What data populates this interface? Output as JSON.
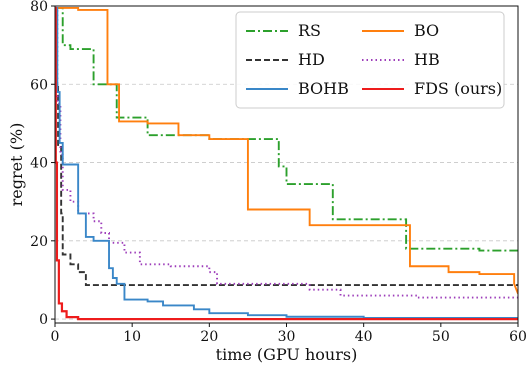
{
  "chart_data": {
    "type": "line",
    "title": "",
    "xlabel": "time (GPU hours)",
    "ylabel": "regret (%)",
    "xlim": [
      0,
      60
    ],
    "ylim": [
      -1,
      80
    ],
    "xticks": [
      0,
      10,
      20,
      30,
      40,
      50,
      60
    ],
    "yticks": [
      0,
      20,
      40,
      60,
      80
    ],
    "grid": "horizontal dashed",
    "legend_position": "top-right",
    "legend_columns": 2,
    "series": [
      {
        "name": "RS",
        "color": "#2ca02c",
        "linestyle": "dashdot",
        "step": true,
        "points": [
          [
            0,
            79.5
          ],
          [
            1,
            79.5
          ],
          [
            1,
            70
          ],
          [
            2,
            70
          ],
          [
            2,
            69
          ],
          [
            5,
            69
          ],
          [
            5,
            60
          ],
          [
            8,
            60
          ],
          [
            8,
            51.5
          ],
          [
            12,
            51.5
          ],
          [
            12,
            47
          ],
          [
            20,
            47
          ],
          [
            20,
            46
          ],
          [
            29,
            46
          ],
          [
            29,
            39
          ],
          [
            30,
            39
          ],
          [
            30,
            34.5
          ],
          [
            36,
            34.5
          ],
          [
            36,
            25.5
          ],
          [
            45.5,
            25.5
          ],
          [
            45.5,
            18
          ],
          [
            55,
            18
          ],
          [
            55,
            17.5
          ],
          [
            60,
            17.5
          ]
        ]
      },
      {
        "name": "BO",
        "color": "#ff7f0e",
        "linestyle": "solid",
        "step": true,
        "points": [
          [
            0,
            79.5
          ],
          [
            3,
            79.5
          ],
          [
            3,
            79
          ],
          [
            6.8,
            79
          ],
          [
            6.8,
            60
          ],
          [
            8.3,
            60
          ],
          [
            8.3,
            50.5
          ],
          [
            12,
            50.5
          ],
          [
            12,
            50
          ],
          [
            16,
            50
          ],
          [
            16,
            47
          ],
          [
            20,
            47
          ],
          [
            20,
            46
          ],
          [
            25,
            46
          ],
          [
            25,
            28
          ],
          [
            33,
            28
          ],
          [
            33,
            24
          ],
          [
            46,
            24
          ],
          [
            46,
            13.5
          ],
          [
            51,
            13.5
          ],
          [
            51,
            12
          ],
          [
            55,
            12
          ],
          [
            55,
            11.5
          ],
          [
            59.5,
            11.5
          ],
          [
            59.5,
            9
          ],
          [
            60,
            6.5
          ]
        ]
      },
      {
        "name": "HD",
        "color": "#333333",
        "linestyle": "dashed",
        "step": true,
        "points": [
          [
            0,
            79.5
          ],
          [
            0.2,
            79.5
          ],
          [
            0.2,
            60
          ],
          [
            0.4,
            60
          ],
          [
            0.4,
            44
          ],
          [
            0.8,
            44
          ],
          [
            0.8,
            27
          ],
          [
            1,
            27
          ],
          [
            1,
            16.5
          ],
          [
            2,
            16.5
          ],
          [
            2,
            14
          ],
          [
            3,
            14
          ],
          [
            3,
            12
          ],
          [
            4,
            12
          ],
          [
            4,
            8.7
          ],
          [
            60,
            8.7
          ]
        ]
      },
      {
        "name": "HB",
        "color": "#9d3dba",
        "linestyle": "dotted",
        "step": true,
        "points": [
          [
            0,
            79.5
          ],
          [
            0.3,
            79.5
          ],
          [
            0.3,
            55
          ],
          [
            0.7,
            55
          ],
          [
            0.7,
            42
          ],
          [
            1,
            42
          ],
          [
            1,
            33
          ],
          [
            2,
            33
          ],
          [
            2,
            30
          ],
          [
            3,
            30
          ],
          [
            3,
            27
          ],
          [
            5,
            27
          ],
          [
            5,
            25
          ],
          [
            6,
            25
          ],
          [
            6,
            22
          ],
          [
            7,
            22
          ],
          [
            7,
            19.5
          ],
          [
            9,
            19.5
          ],
          [
            9,
            17
          ],
          [
            11,
            17
          ],
          [
            11,
            14
          ],
          [
            15,
            14
          ],
          [
            15,
            13.5
          ],
          [
            20,
            13.5
          ],
          [
            20,
            12
          ],
          [
            21,
            12
          ],
          [
            21,
            9
          ],
          [
            33,
            9
          ],
          [
            33,
            7.5
          ],
          [
            37,
            7.5
          ],
          [
            37,
            6
          ],
          [
            47,
            6
          ],
          [
            47,
            5.5
          ],
          [
            60,
            5.5
          ]
        ]
      },
      {
        "name": "BOHB",
        "color": "#3a87c8",
        "linestyle": "solid",
        "step": true,
        "points": [
          [
            0,
            79.5
          ],
          [
            0.3,
            79.5
          ],
          [
            0.3,
            58
          ],
          [
            0.6,
            58
          ],
          [
            0.6,
            45
          ],
          [
            1,
            45
          ],
          [
            1,
            39.5
          ],
          [
            3,
            39.5
          ],
          [
            3,
            27
          ],
          [
            4,
            27
          ],
          [
            4,
            21
          ],
          [
            5,
            21
          ],
          [
            5,
            20
          ],
          [
            7,
            20
          ],
          [
            7,
            13
          ],
          [
            7.5,
            13
          ],
          [
            7.5,
            10.5
          ],
          [
            8,
            10.5
          ],
          [
            8,
            9
          ],
          [
            9,
            9
          ],
          [
            9,
            5
          ],
          [
            12,
            5
          ],
          [
            12,
            4.5
          ],
          [
            14,
            4.5
          ],
          [
            14,
            3.5
          ],
          [
            18,
            3.5
          ],
          [
            18,
            2.5
          ],
          [
            20,
            2.5
          ],
          [
            20,
            1.5
          ],
          [
            25,
            1.5
          ],
          [
            25,
            1
          ],
          [
            30,
            1
          ],
          [
            30,
            0.6
          ],
          [
            40,
            0.6
          ],
          [
            40,
            0.3
          ],
          [
            60,
            0.3
          ]
        ]
      },
      {
        "name": "FDS (ours)",
        "color": "#ee1c1c",
        "linestyle": "solid",
        "step": true,
        "points": [
          [
            0,
            79.5
          ],
          [
            0.1,
            79.5
          ],
          [
            0.1,
            40
          ],
          [
            0.25,
            40
          ],
          [
            0.25,
            15
          ],
          [
            0.5,
            15
          ],
          [
            0.5,
            4
          ],
          [
            0.9,
            4
          ],
          [
            0.9,
            2
          ],
          [
            1.5,
            2
          ],
          [
            1.5,
            0.5
          ],
          [
            3,
            0.5
          ],
          [
            3,
            0
          ],
          [
            60,
            0
          ]
        ]
      }
    ]
  }
}
